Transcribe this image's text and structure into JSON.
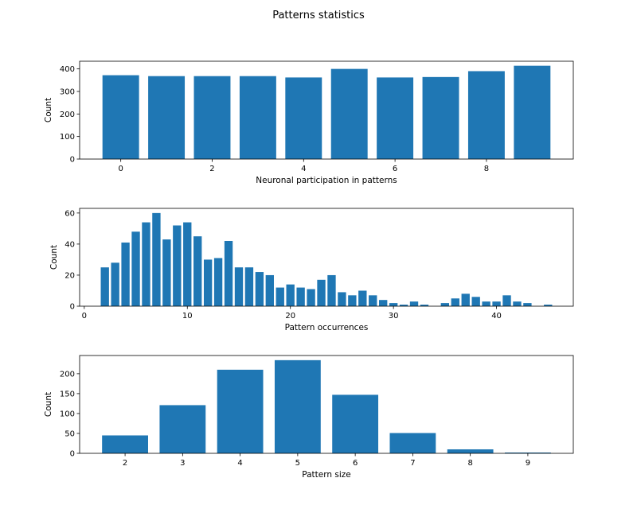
{
  "figure": {
    "suptitle": "Patterns statistics",
    "bar_color": "#1f77b4"
  },
  "chart_data": [
    {
      "type": "bar",
      "xlabel": "Neuronal participation in patterns",
      "ylabel": "Count",
      "x": [
        0,
        1,
        2,
        3,
        4,
        5,
        6,
        7,
        8,
        9
      ],
      "values": [
        372,
        368,
        368,
        368,
        362,
        400,
        362,
        364,
        390,
        414
      ],
      "bar_width": 0.8,
      "xlim": [
        -0.9,
        9.9
      ],
      "ylim": [
        0,
        434
      ],
      "xticks": [
        0,
        2,
        4,
        6,
        8
      ],
      "yticks": [
        0,
        100,
        200,
        300,
        400
      ]
    },
    {
      "type": "bar",
      "xlabel": "Pattern occurrences",
      "ylabel": "Count",
      "x": [
        2,
        3,
        4,
        5,
        6,
        7,
        8,
        9,
        10,
        11,
        12,
        13,
        14,
        15,
        16,
        17,
        18,
        19,
        20,
        21,
        22,
        23,
        24,
        25,
        26,
        27,
        28,
        29,
        30,
        31,
        32,
        33,
        35,
        36,
        37,
        38,
        39,
        40,
        41,
        42,
        43,
        45
      ],
      "values": [
        25,
        28,
        41,
        48,
        54,
        60,
        43,
        52,
        54,
        45,
        30,
        31,
        42,
        25,
        25,
        22,
        20,
        12,
        14,
        12,
        11,
        17,
        20,
        9,
        7,
        10,
        7,
        4,
        2,
        1,
        3,
        1,
        2,
        5,
        8,
        6,
        3,
        3,
        7,
        3,
        2,
        1
      ],
      "bar_width": 0.8,
      "xlim": [
        -0.45,
        47.45
      ],
      "ylim": [
        0,
        63
      ],
      "xticks": [
        0,
        10,
        20,
        30,
        40
      ],
      "yticks": [
        0,
        20,
        40,
        60
      ]
    },
    {
      "type": "bar",
      "xlabel": "Pattern size",
      "ylabel": "Count",
      "x": [
        2,
        3,
        4,
        5,
        6,
        7,
        8,
        9
      ],
      "values": [
        45,
        121,
        210,
        234,
        147,
        51,
        10,
        2
      ],
      "bar_width": 0.8,
      "xlim": [
        1.21,
        9.79
      ],
      "ylim": [
        0,
        245.7
      ],
      "xticks": [
        2,
        3,
        4,
        5,
        6,
        7,
        8,
        9
      ],
      "yticks": [
        0,
        50,
        100,
        150,
        200
      ]
    }
  ]
}
